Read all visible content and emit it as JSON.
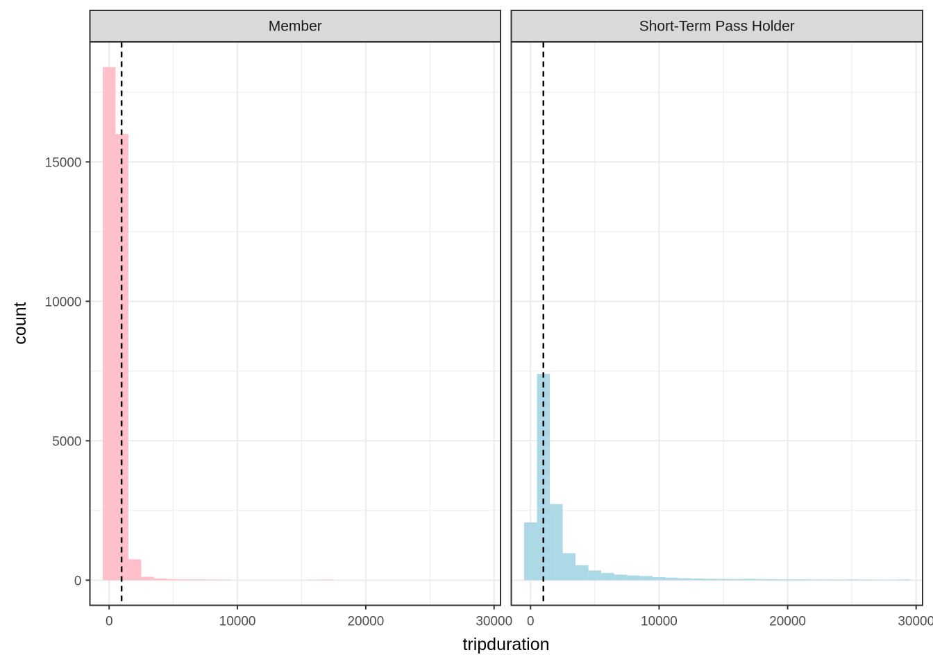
{
  "chart_data": {
    "type": "bar",
    "xlabel": "tripduration",
    "ylabel": "count",
    "xlim": [
      -1500,
      30500
    ],
    "ylim": [
      -900,
      19300
    ],
    "x_ticks": [
      0,
      10000,
      20000,
      30000
    ],
    "x_tick_labels": [
      "0",
      "10000",
      "20000",
      "30000"
    ],
    "y_ticks": [
      0,
      5000,
      10000,
      15000
    ],
    "y_tick_labels": [
      "0",
      "5000",
      "10000",
      "15000"
    ],
    "bin_width": 1000,
    "grid": true,
    "reference_line": {
      "style": "dashed",
      "color": "#000000"
    },
    "facets": [
      {
        "label": "Member",
        "color": "#ffc0cb",
        "mean_line_x": 970,
        "bin_centers": [
          0,
          1000,
          2000,
          3000,
          4000,
          5000,
          6000,
          7000,
          8000,
          9000,
          16000,
          17000
        ],
        "counts": [
          18400,
          16000,
          750,
          120,
          60,
          40,
          30,
          30,
          25,
          20,
          15,
          25
        ]
      },
      {
        "label": "Short-Term Pass Holder",
        "color": "#add8e6",
        "mean_line_x": 1000,
        "bin_centers": [
          0,
          1000,
          2000,
          3000,
          4000,
          5000,
          6000,
          7000,
          8000,
          9000,
          10000,
          11000,
          12000,
          13000,
          14000,
          15000,
          16000,
          17000,
          18000,
          19000,
          20000,
          21000,
          22000,
          23000,
          24000,
          25000,
          26000,
          27000,
          28000,
          29000
        ],
        "counts": [
          2070,
          7400,
          2730,
          970,
          540,
          350,
          260,
          200,
          170,
          150,
          110,
          90,
          70,
          60,
          50,
          45,
          40,
          50,
          40,
          35,
          30,
          30,
          25,
          25,
          20,
          25,
          20,
          15,
          15,
          25
        ]
      }
    ]
  }
}
